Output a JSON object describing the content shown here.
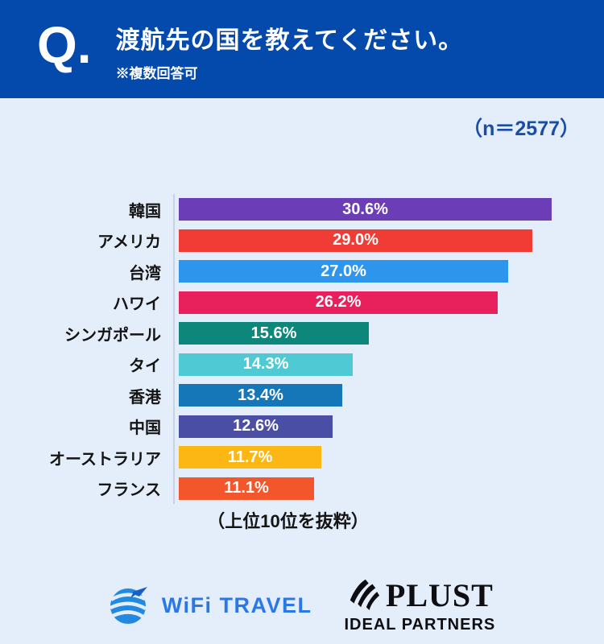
{
  "header": {
    "q_label": "Q.",
    "title": "渡航先の国を教えてください。",
    "subtitle": "※複数回答可"
  },
  "sample_size_label": "（n＝2577）",
  "chart_data": {
    "type": "bar",
    "orientation": "horizontal",
    "title": "渡航先の国を教えてください。",
    "categories": [
      "韓国",
      "アメリカ",
      "台湾",
      "ハワイ",
      "シンガポール",
      "タイ",
      "香港",
      "中国",
      "オーストラリア",
      "フランス"
    ],
    "values": [
      30.6,
      29.0,
      27.0,
      26.2,
      15.6,
      14.3,
      13.4,
      12.6,
      11.7,
      11.1
    ],
    "value_labels": [
      "30.6%",
      "29.0%",
      "27.0%",
      "26.2%",
      "15.6%",
      "14.3%",
      "13.4%",
      "12.6%",
      "11.7%",
      "11.1%"
    ],
    "colors": [
      "#6b3eb8",
      "#f03c34",
      "#2d96ec",
      "#e8215d",
      "#0e877b",
      "#4fc9d3",
      "#1576b8",
      "#4a4fa5",
      "#fbb714",
      "#f4562b"
    ],
    "xlim": [
      0,
      30.6
    ],
    "grid": false,
    "legend": false,
    "note": "（上位10位を抜粋）"
  },
  "footer": {
    "wifi_travel_label": "WiFi TRAVEL",
    "plust_label": "PLUST",
    "plust_sublabel": "IDEAL PARTNERS"
  },
  "colors": {
    "header_bg": "#0449ac",
    "page_bg": "#e4eefb",
    "n_label_text": "#1b4da8",
    "bar_value_text": "#ffffff",
    "wifi_brand_blue": "#2878e8",
    "plust_black": "#0d0d12"
  },
  "icons": {
    "globe_airplane_icon": "globe with airplane",
    "plust_brush_icon": "three brush strokes"
  }
}
